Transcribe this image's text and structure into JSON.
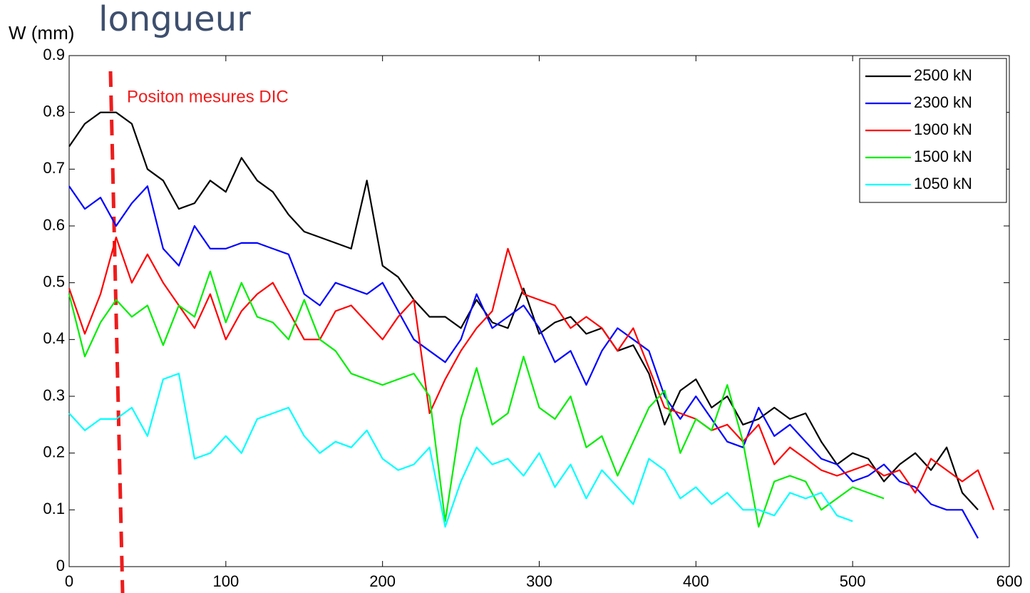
{
  "chart_data": {
    "type": "line",
    "title": "longueur",
    "y_label": "W (mm)",
    "annotation": "Positon mesures DIC",
    "legend": "upper right",
    "x": [
      0,
      10,
      20,
      30,
      40,
      50,
      60,
      70,
      80,
      90,
      100,
      110,
      120,
      130,
      140,
      150,
      160,
      170,
      180,
      190,
      200,
      210,
      220,
      230,
      240,
      250,
      260,
      270,
      280,
      290,
      300,
      310,
      320,
      330,
      340,
      350,
      360,
      370,
      380,
      390,
      400,
      410,
      420,
      430,
      440,
      450,
      460,
      470,
      480,
      490,
      500,
      510,
      520,
      530,
      540,
      550,
      560,
      570,
      580,
      590
    ],
    "xlim": [
      0,
      600
    ],
    "xticks": [
      0,
      100,
      200,
      300,
      400,
      500,
      600
    ],
    "ylim": [
      0,
      0.9
    ],
    "yticks": [
      0,
      0.1,
      0.2,
      0.3,
      0.4,
      0.5,
      0.6,
      0.7,
      0.8,
      0.9
    ],
    "series": [
      {
        "name": "2500 kN",
        "color": "#000000",
        "values": [
          0.74,
          0.78,
          0.8,
          0.8,
          0.78,
          0.7,
          0.68,
          0.63,
          0.64,
          0.68,
          0.66,
          0.72,
          0.68,
          0.66,
          0.62,
          0.59,
          0.58,
          0.57,
          0.56,
          0.68,
          0.53,
          0.51,
          0.47,
          0.44,
          0.44,
          0.42,
          0.47,
          0.43,
          0.42,
          0.49,
          0.41,
          0.43,
          0.44,
          0.41,
          0.42,
          0.38,
          0.39,
          0.34,
          0.25,
          0.31,
          0.33,
          0.28,
          0.3,
          0.25,
          0.26,
          0.28,
          0.26,
          0.27,
          0.22,
          0.18,
          0.2,
          0.19,
          0.15,
          0.18,
          0.2,
          0.17,
          0.21,
          0.13,
          0.1,
          null
        ]
      },
      {
        "name": "2300 kN",
        "color": "#0000ff",
        "values": [
          0.67,
          0.63,
          0.65,
          0.6,
          0.64,
          0.67,
          0.56,
          0.53,
          0.6,
          0.56,
          0.56,
          0.57,
          0.57,
          0.56,
          0.55,
          0.48,
          0.46,
          0.5,
          0.49,
          0.48,
          0.5,
          0.45,
          0.4,
          0.38,
          0.36,
          0.4,
          0.48,
          0.42,
          0.44,
          0.46,
          0.42,
          0.36,
          0.38,
          0.32,
          0.38,
          0.42,
          0.4,
          0.38,
          0.3,
          0.26,
          0.3,
          0.26,
          0.22,
          0.21,
          0.28,
          0.23,
          0.25,
          0.22,
          0.19,
          0.18,
          0.15,
          0.16,
          0.18,
          0.15,
          0.14,
          0.11,
          0.1,
          0.1,
          0.05,
          null
        ]
      },
      {
        "name": "1900 kN",
        "color": "#ff0000",
        "values": [
          0.49,
          0.41,
          0.48,
          0.58,
          0.5,
          0.55,
          0.5,
          0.46,
          0.42,
          0.48,
          0.4,
          0.45,
          0.48,
          0.5,
          0.45,
          0.4,
          0.4,
          0.45,
          0.46,
          0.43,
          0.4,
          0.44,
          0.47,
          0.27,
          0.33,
          0.38,
          0.42,
          0.45,
          0.56,
          0.48,
          0.47,
          0.46,
          0.42,
          0.44,
          0.42,
          0.38,
          0.42,
          0.35,
          0.28,
          0.27,
          0.26,
          0.24,
          0.25,
          0.22,
          0.25,
          0.18,
          0.21,
          0.19,
          0.17,
          0.16,
          0.17,
          0.18,
          0.16,
          0.17,
          0.13,
          0.19,
          0.17,
          0.15,
          0.17,
          0.1
        ]
      },
      {
        "name": "1500 kN",
        "color": "#00ee00",
        "values": [
          0.48,
          0.37,
          0.43,
          0.47,
          0.44,
          0.46,
          0.39,
          0.46,
          0.44,
          0.52,
          0.43,
          0.5,
          0.44,
          0.43,
          0.4,
          0.47,
          0.4,
          0.38,
          0.34,
          0.33,
          0.32,
          0.33,
          0.34,
          0.3,
          0.08,
          0.26,
          0.35,
          0.25,
          0.27,
          0.37,
          0.28,
          0.26,
          0.3,
          0.21,
          0.23,
          0.16,
          0.22,
          0.28,
          0.31,
          0.2,
          0.26,
          0.24,
          0.32,
          0.22,
          0.07,
          0.15,
          0.16,
          0.15,
          0.1,
          0.12,
          0.14,
          0.13,
          0.12,
          null,
          null,
          null,
          null,
          null,
          null,
          null
        ]
      },
      {
        "name": "1050 kN",
        "color": "#00ffff",
        "values": [
          0.27,
          0.24,
          0.26,
          0.26,
          0.28,
          0.23,
          0.33,
          0.34,
          0.19,
          0.2,
          0.23,
          0.2,
          0.26,
          0.27,
          0.28,
          0.23,
          0.2,
          0.22,
          0.21,
          0.24,
          0.19,
          0.17,
          0.18,
          0.21,
          0.07,
          0.15,
          0.21,
          0.18,
          0.19,
          0.16,
          0.2,
          0.14,
          0.18,
          0.12,
          0.17,
          0.14,
          0.11,
          0.19,
          0.17,
          0.12,
          0.14,
          0.11,
          0.13,
          0.1,
          0.1,
          0.09,
          0.13,
          0.12,
          0.13,
          0.09,
          0.08,
          null,
          null,
          null,
          null,
          null,
          null,
          null,
          null,
          null
        ]
      }
    ]
  }
}
